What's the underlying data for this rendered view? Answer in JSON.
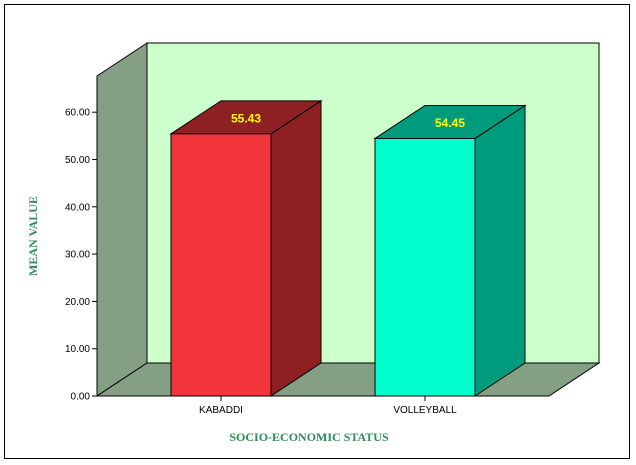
{
  "chart_data": {
    "type": "bar",
    "title": "",
    "xlabel": "SOCIO-ECONOMIC STATUS",
    "ylabel": "MEAN VALUE",
    "categories": [
      "KABADDI",
      "VOLLEYBALL"
    ],
    "values": [
      55.43,
      54.45
    ],
    "value_labels": [
      "55.43",
      "54.45"
    ],
    "yticks": [
      "0.00",
      "10.00",
      "20.00",
      "30.00",
      "40.00",
      "50.00",
      "60.00"
    ],
    "ylim": [
      0,
      60
    ],
    "grid": false,
    "legend": "none",
    "style": "3d"
  },
  "colors": {
    "back_wall": "#ccffcc",
    "side_wall": "#849f84",
    "floor": "#849f84",
    "axis_title": "#2e8b57",
    "value_label": "#ffff00",
    "bars": [
      {
        "front": "#f2353b",
        "top": "#8e2024",
        "side": "#8e2024"
      },
      {
        "front": "#00ffcc",
        "top": "#009b7d",
        "side": "#009b7d"
      }
    ]
  }
}
